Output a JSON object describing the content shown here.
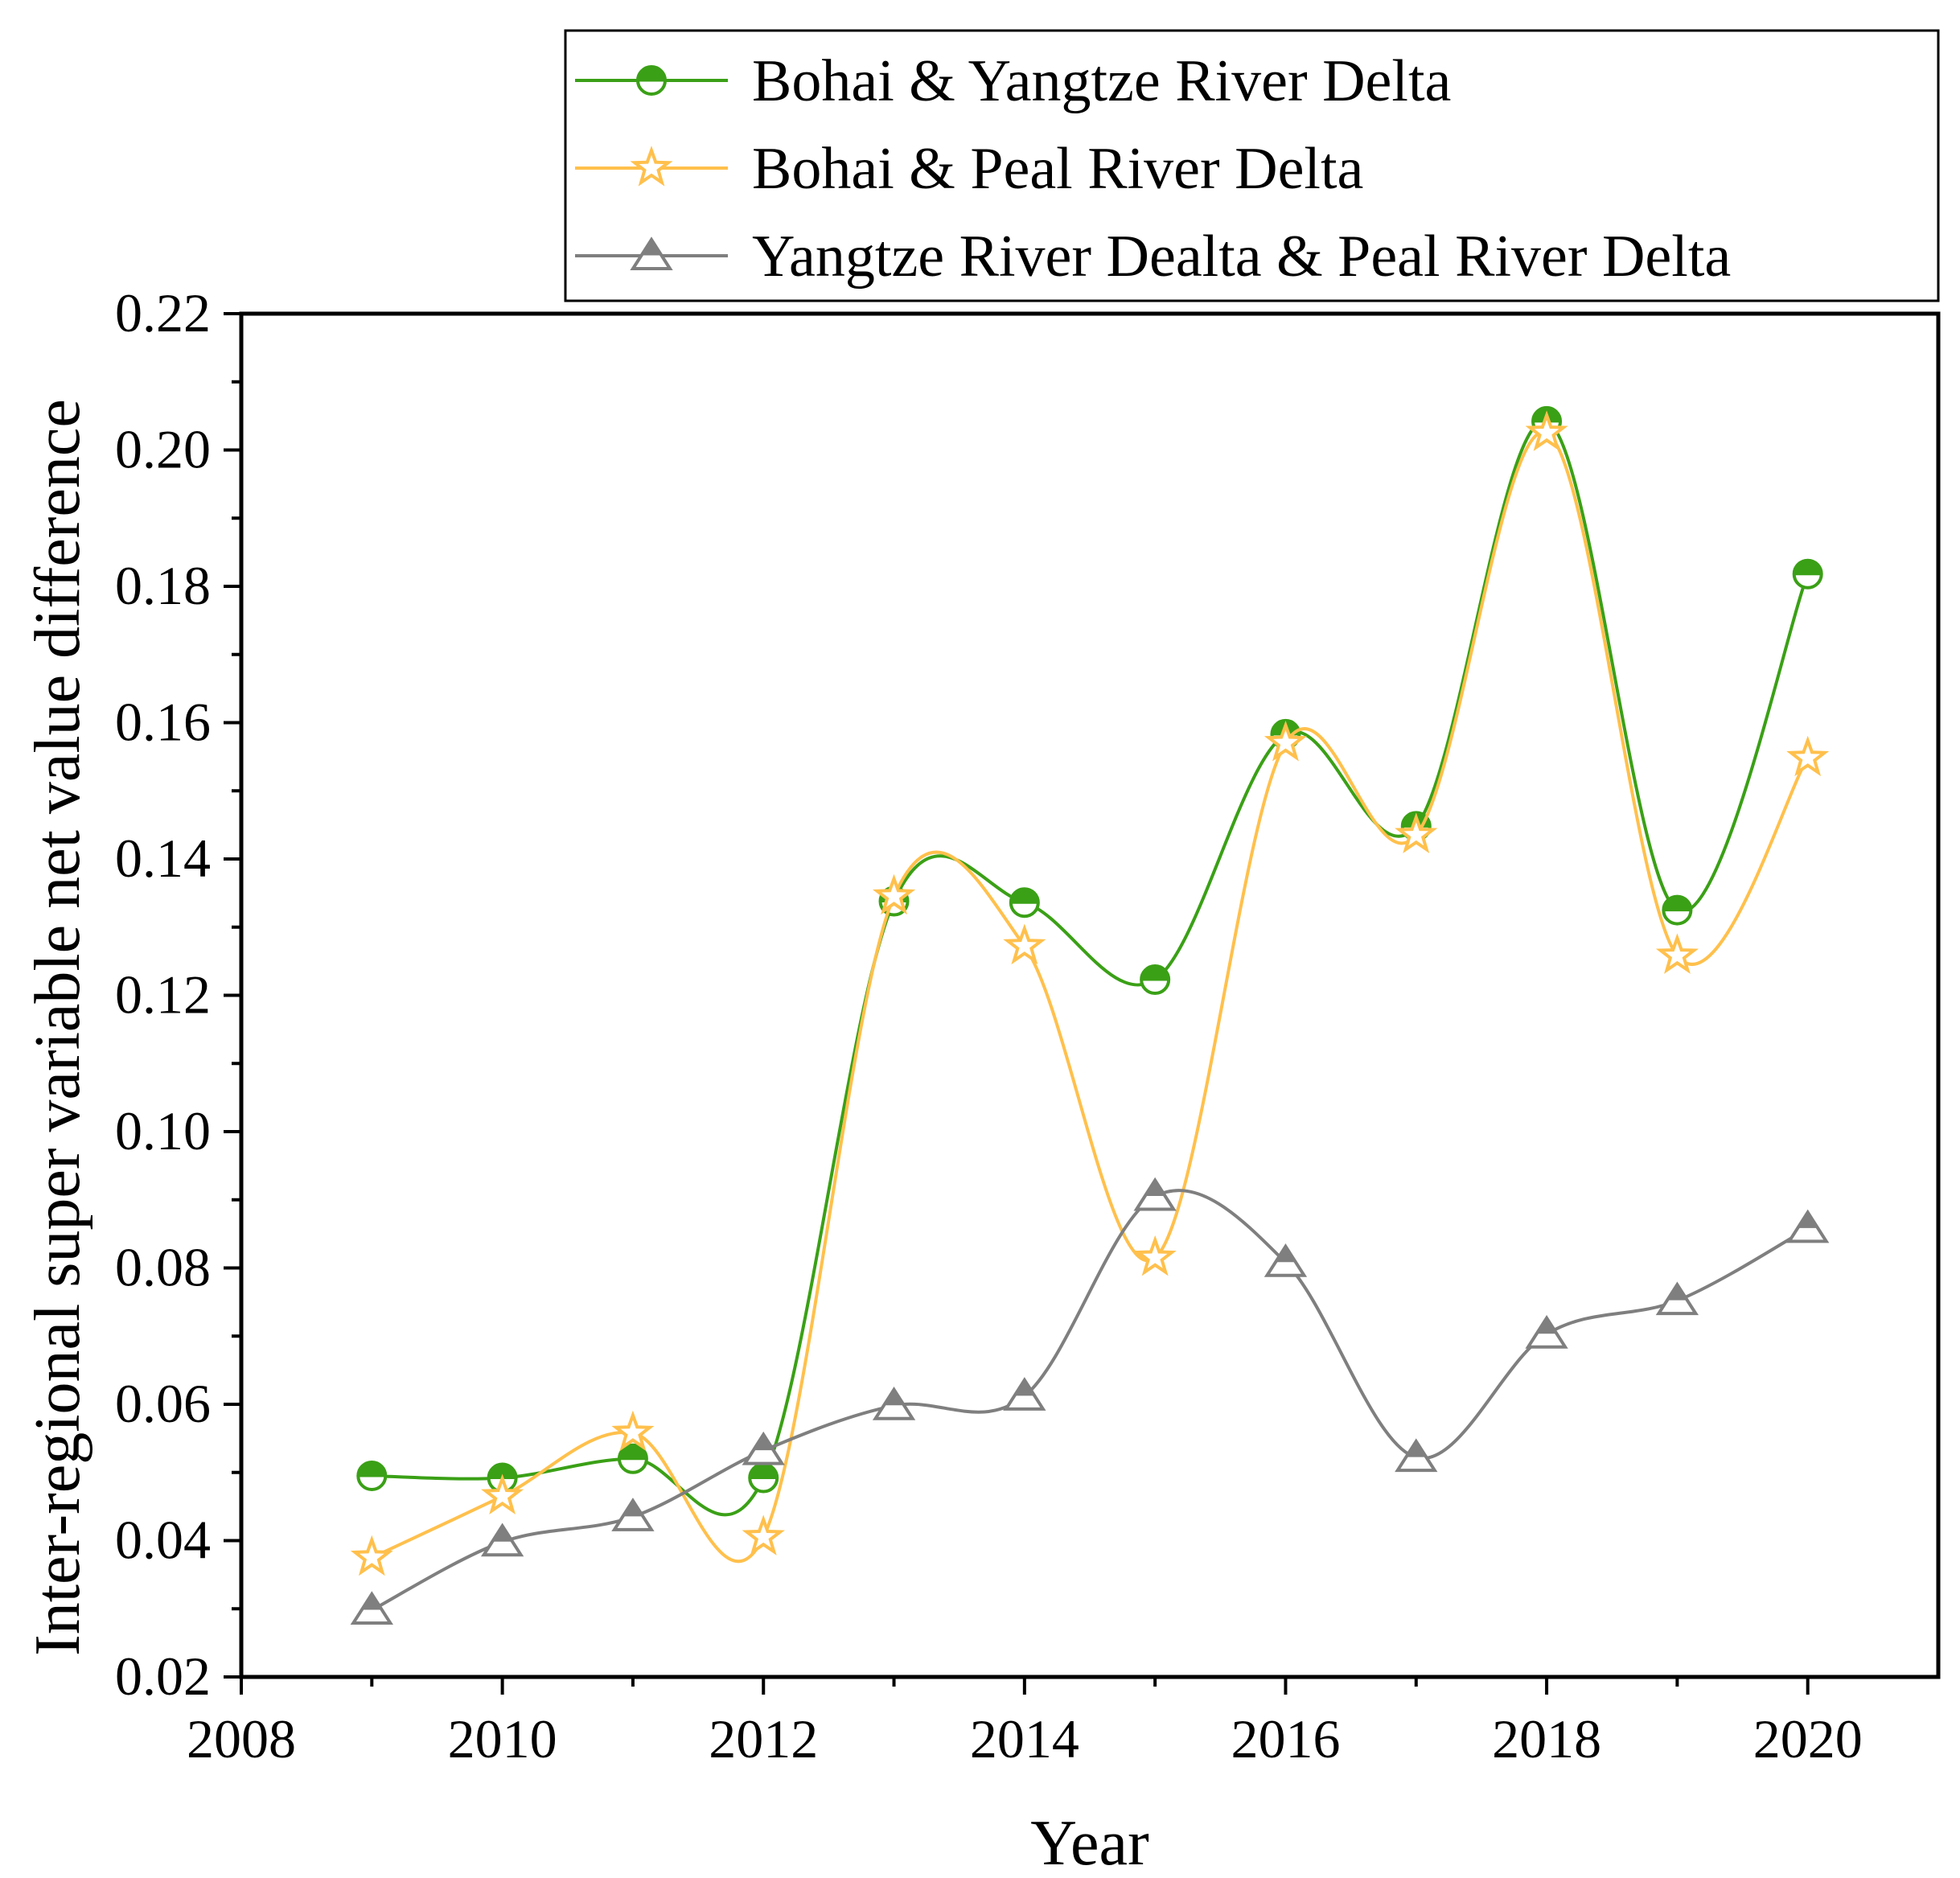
{
  "chart_data": {
    "type": "line",
    "title": "",
    "xlabel": "Year",
    "ylabel": "Inter-regional super variable net value difference",
    "xlim": [
      2008,
      2021
    ],
    "ylim": [
      0.02,
      0.22
    ],
    "x_ticks": [
      "2008",
      "2010",
      "2012",
      "2014",
      "2016",
      "2018",
      "2020"
    ],
    "y_ticks": [
      "0.02",
      "0.04",
      "0.06",
      "0.08",
      "0.10",
      "0.12",
      "0.14",
      "0.16",
      "0.18",
      "0.20",
      "0.22"
    ],
    "grid": false,
    "legend_position": "top-right",
    "x": [
      2009,
      2010,
      2011,
      2012,
      2013,
      2014,
      2015,
      2016,
      2017,
      2018,
      2019,
      2020
    ],
    "series": [
      {
        "name": "Bohai & Yangtze River Delta",
        "color": "#3aa016",
        "marker": "half-circle",
        "values": [
          0.0495,
          0.0492,
          0.052,
          0.0492,
          0.1338,
          0.1336,
          0.1223,
          0.1583,
          0.1448,
          0.2042,
          0.1325,
          0.1818
        ]
      },
      {
        "name": "Bohai & Peal River Delta",
        "color": "#ffc04c",
        "marker": "star",
        "values": [
          0.0375,
          0.0465,
          0.0558,
          0.0405,
          0.1345,
          0.1272,
          0.0815,
          0.157,
          0.1435,
          0.2025,
          0.1258,
          0.1548
        ]
      },
      {
        "name": "Yangtze River Dealta & Peal River Delta",
        "color": "#7f7f7f",
        "marker": "half-triangle",
        "values": [
          0.0298,
          0.0398,
          0.0435,
          0.0532,
          0.0598,
          0.0612,
          0.0905,
          0.0808,
          0.0522,
          0.0703,
          0.0752,
          0.0858
        ]
      }
    ]
  }
}
